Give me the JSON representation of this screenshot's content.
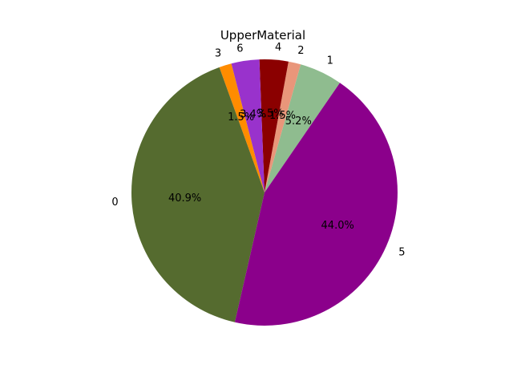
{
  "chart_data": {
    "type": "pie",
    "title": "UpperMaterial",
    "slices": [
      {
        "label": "1",
        "pct_label": "5.2%",
        "value": 5.2,
        "color": "#8fbc8f"
      },
      {
        "label": "2",
        "pct_label": "1.5%",
        "value": 1.5,
        "color": "#e9967a"
      },
      {
        "label": "4",
        "pct_label": "3.5%",
        "value": 3.5,
        "color": "#8b0000"
      },
      {
        "label": "6",
        "pct_label": "3.4%",
        "value": 3.4,
        "color": "#9932cc"
      },
      {
        "label": "3",
        "pct_label": "1.5%",
        "value": 1.5,
        "color": "#ff8c00"
      },
      {
        "label": "0",
        "pct_label": "40.9%",
        "value": 40.9,
        "color": "#556b2f"
      },
      {
        "label": "5",
        "pct_label": "44.0%",
        "value": 44.0,
        "color": "#8b008b"
      }
    ]
  }
}
